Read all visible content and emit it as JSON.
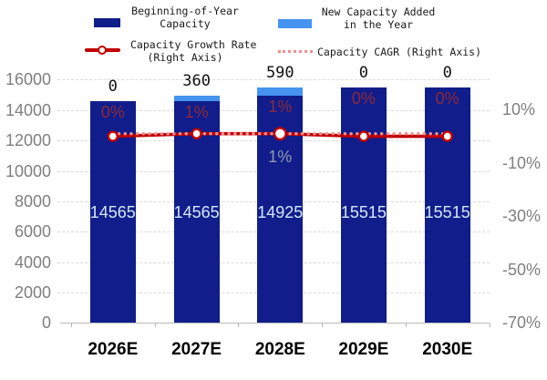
{
  "legend": {
    "items": [
      {
        "label_line1": "Beginning-of-Year",
        "label_line2": "Capacity",
        "swatch": "navy-bar",
        "swatch_color": "#101d8b"
      },
      {
        "label_line1": "New Capacity Added",
        "label_line2": "in the Year",
        "swatch": "blue-bar",
        "swatch_color": "#4693f0"
      },
      {
        "label_line1": "Capacity Growth Rate",
        "label_line2": "(Right Axis)",
        "swatch": "red-line-marker",
        "swatch_color": "#c00000"
      },
      {
        "label_line1": "Capacity CAGR (Right Axis)",
        "label_line2": "",
        "swatch": "pink-dotted-line",
        "swatch_color": "#ef8f8f"
      }
    ]
  },
  "chart_data": {
    "type": "bar",
    "subtype": "stacked bars with two right-axis lines",
    "categories": [
      "2026E",
      "2027E",
      "2028E",
      "2029E",
      "2030E"
    ],
    "series": [
      {
        "name": "Beginning-of-Year Capacity",
        "type": "bar",
        "axis": "left",
        "color": "#101d8b",
        "values": [
          14565,
          14565,
          14925,
          15515,
          15515
        ],
        "labels_inside": [
          "14565",
          "14565",
          "14925",
          "15515",
          "15515"
        ]
      },
      {
        "name": "New Capacity Added in the Year",
        "type": "bar",
        "axis": "left",
        "color": "#4693f0",
        "values": [
          0,
          360,
          590,
          0,
          0
        ],
        "labels_above": [
          "0",
          "360",
          "590",
          "0",
          "0"
        ]
      },
      {
        "name": "Capacity Growth Rate (Right Axis)",
        "type": "line",
        "axis": "right",
        "color": "#c00000",
        "values_pct": [
          0,
          1,
          1,
          0,
          0
        ],
        "labels": [
          "0%",
          "1%",
          "1%",
          "0%",
          "0%"
        ]
      },
      {
        "name": "Capacity CAGR (Right Axis)",
        "type": "dotted-line",
        "axis": "right",
        "color": "#ef8f8f",
        "value_pct": 1,
        "label": "1%",
        "label_category": "2028E"
      }
    ],
    "axis_left": {
      "min": 0,
      "max": 16000,
      "tick_step": 2000,
      "ticks": [
        "16000",
        "14000",
        "12000",
        "10000",
        "8000",
        "6000",
        "4000",
        "2000",
        "0"
      ],
      "tick_values": [
        16000,
        14000,
        12000,
        10000,
        8000,
        6000,
        4000,
        2000,
        0
      ]
    },
    "axis_right": {
      "ticks": [
        "10%",
        "-10%",
        "-30%",
        "-50%",
        "-70%"
      ],
      "tick_values": [
        10,
        -10,
        -30,
        -50,
        -70
      ]
    },
    "grid": "horizontal dashed",
    "legend_position": "top"
  },
  "colors": {
    "bar_navy": "#101d8b",
    "bar_blue": "#4693f0",
    "line_red": "#c00000",
    "line_cagr_pink": "#ef8f8f",
    "growth_label": "#8d2a38",
    "cagr_label": "#9297ac",
    "bar_value_label": "#d4e9fb",
    "axis_tick_label": "#7f7f7f",
    "gridline": "#d9d9d9"
  }
}
